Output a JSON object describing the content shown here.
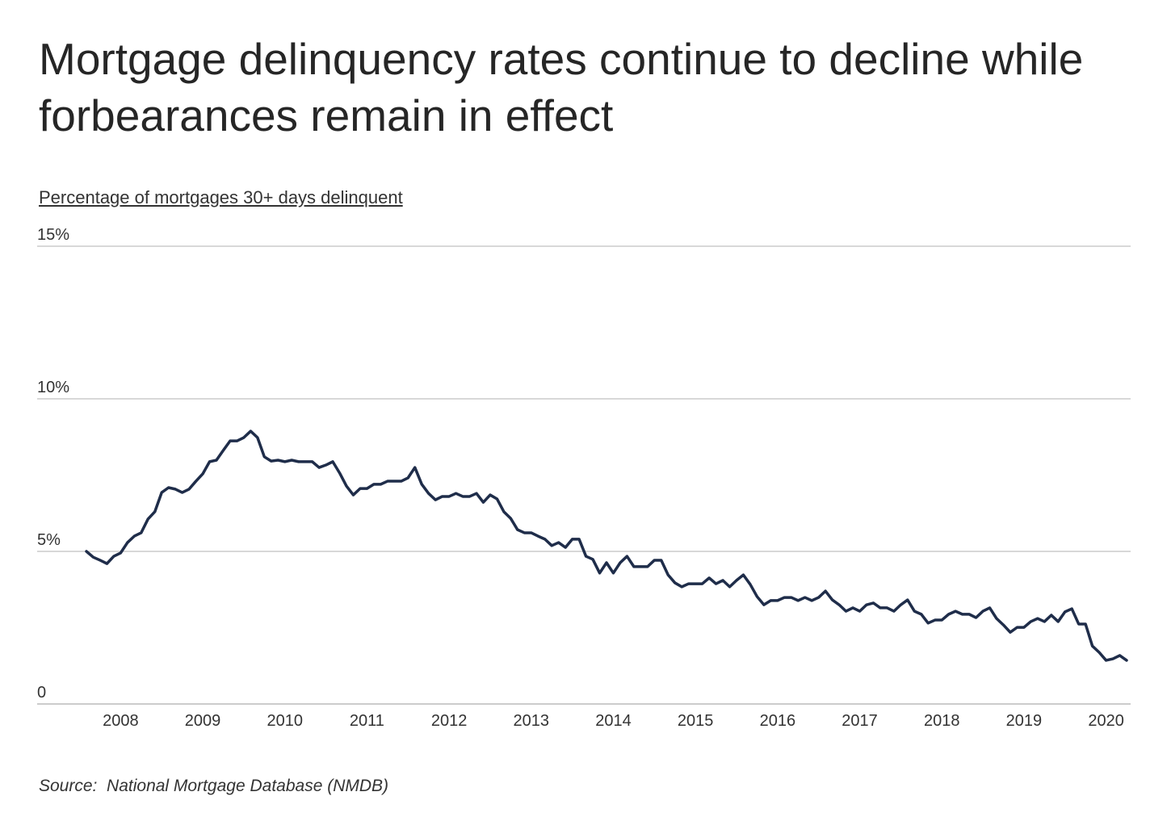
{
  "chart_data": {
    "type": "line",
    "title": "Mortgage delinquency rates continue to decline while forbearances remain in effect",
    "subtitle": "Percentage of mortgages 30+ days delinquent",
    "source": "Source:  National Mortgage Database (NMDB)",
    "categories": [
      null,
      null,
      null,
      null,
      null,
      "2008",
      null,
      null,
      null,
      null,
      null,
      null,
      null,
      null,
      null,
      null,
      null,
      "2009",
      null,
      null,
      null,
      null,
      null,
      null,
      null,
      null,
      null,
      null,
      null,
      "2010",
      null,
      null,
      null,
      null,
      null,
      null,
      null,
      null,
      null,
      null,
      null,
      "2011",
      null,
      null,
      null,
      null,
      null,
      null,
      null,
      null,
      null,
      null,
      null,
      "2012",
      null,
      null,
      null,
      null,
      null,
      null,
      null,
      null,
      null,
      null,
      null,
      "2013",
      null,
      null,
      null,
      null,
      null,
      null,
      null,
      null,
      null,
      null,
      null,
      "2014",
      null,
      null,
      null,
      null,
      null,
      null,
      null,
      null,
      null,
      null,
      null,
      "2015",
      null,
      null,
      null,
      null,
      null,
      null,
      null,
      null,
      null,
      null,
      null,
      "2016",
      null,
      null,
      null,
      null,
      null,
      null,
      null,
      null,
      null,
      null,
      null,
      "2017",
      null,
      null,
      null,
      null,
      null,
      null,
      null,
      null,
      null,
      null,
      null,
      "2018",
      null,
      null,
      null,
      null,
      null,
      null,
      null,
      null,
      null,
      null,
      null,
      "2019",
      null,
      null,
      null,
      null,
      null,
      null,
      null,
      null,
      null,
      null,
      null,
      "2020",
      null,
      null,
      null
    ],
    "series": [
      {
        "name": "Percentage of mortgages 30+ days delinquent",
        "color": "#1f2d4a",
        "values": [
          5.0,
          4.81,
          4.71,
          4.6,
          4.84,
          4.95,
          5.29,
          5.5,
          5.61,
          6.06,
          6.3,
          6.93,
          7.09,
          7.04,
          6.93,
          7.04,
          7.3,
          7.54,
          7.94,
          7.99,
          8.31,
          8.62,
          8.62,
          8.73,
          8.94,
          8.73,
          8.1,
          7.96,
          7.99,
          7.94,
          7.99,
          7.94,
          7.94,
          7.94,
          7.75,
          7.83,
          7.94,
          7.57,
          7.14,
          6.85,
          7.06,
          7.06,
          7.2,
          7.2,
          7.3,
          7.3,
          7.3,
          7.41,
          7.75,
          7.2,
          6.9,
          6.69,
          6.8,
          6.8,
          6.9,
          6.8,
          6.8,
          6.9,
          6.61,
          6.85,
          6.72,
          6.3,
          6.08,
          5.71,
          5.61,
          5.61,
          5.5,
          5.4,
          5.19,
          5.29,
          5.13,
          5.4,
          5.4,
          4.84,
          4.74,
          4.29,
          4.63,
          4.29,
          4.63,
          4.84,
          4.5,
          4.5,
          4.5,
          4.71,
          4.71,
          4.23,
          3.97,
          3.84,
          3.94,
          3.94,
          3.94,
          4.13,
          3.94,
          4.05,
          3.84,
          4.05,
          4.23,
          3.92,
          3.52,
          3.25,
          3.39,
          3.39,
          3.49,
          3.49,
          3.39,
          3.49,
          3.39,
          3.49,
          3.7,
          3.41,
          3.25,
          3.04,
          3.15,
          3.04,
          3.25,
          3.31,
          3.15,
          3.15,
          3.04,
          3.25,
          3.41,
          3.04,
          2.94,
          2.65,
          2.75,
          2.75,
          2.94,
          3.04,
          2.94,
          2.94,
          2.83,
          3.04,
          3.15,
          2.8,
          2.59,
          2.35,
          2.51,
          2.51,
          2.7,
          2.8,
          2.7,
          2.91,
          2.7,
          3.02,
          3.12,
          2.62,
          2.62,
          1.9,
          1.69,
          1.43,
          1.48,
          1.59,
          1.43
        ]
      }
    ],
    "ylim": [
      0,
      15
    ],
    "yticks": [
      0,
      {
        "value": 5,
        "label": "5%"
      },
      {
        "value": 10,
        "label": "10%"
      },
      {
        "value": 15,
        "label": "15%"
      }
    ],
    "grid": true
  }
}
